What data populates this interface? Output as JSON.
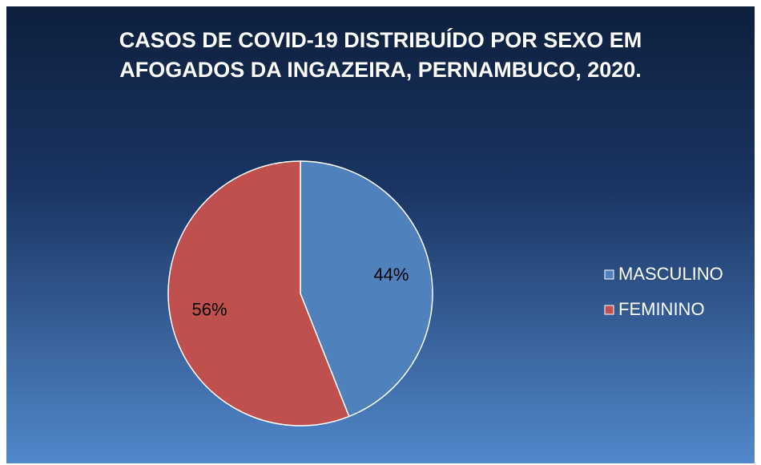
{
  "chart_data": {
    "type": "pie",
    "title": "CASOS DE COVID-19 DISTRIBUÍDO POR SEXO EM AFOGADOS DA INGAZEIRA, PERNAMBUCO, 2020.",
    "categories": [
      "MASCULINO",
      "FEMININO"
    ],
    "values": [
      44,
      56
    ],
    "value_labels": [
      "44%",
      "56%"
    ],
    "colors": [
      "#4f81bd",
      "#c0504d"
    ],
    "legend": "right"
  }
}
